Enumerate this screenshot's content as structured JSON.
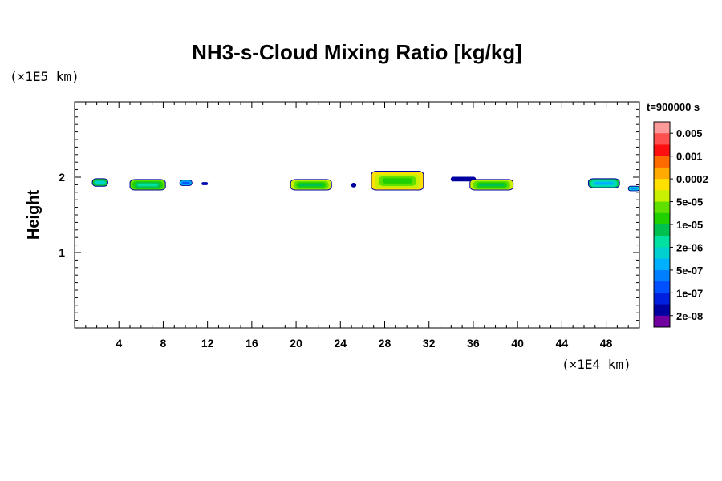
{
  "chart_data": {
    "type": "heatmap",
    "title": "NH3-s-Cloud Mixing Ratio [kg/kg]",
    "ylabel": "Height",
    "x_unit": "(×1E4 km)",
    "y_unit": "(×1E5 km)",
    "time_label": "t=900000 s",
    "xlim": [
      0,
      51
    ],
    "ylim": [
      0,
      3
    ],
    "x_ticks": [
      4,
      8,
      12,
      16,
      20,
      24,
      28,
      32,
      36,
      40,
      44,
      48
    ],
    "x_tick_labels": [
      "4",
      "8",
      "12",
      "16",
      "20",
      "24",
      "28",
      "32",
      "36",
      "40",
      "44",
      "48"
    ],
    "y_ticks": [
      1,
      2
    ],
    "y_tick_labels": [
      "1",
      "2"
    ],
    "legend": {
      "labels": [
        "0.005",
        "0.001",
        "0.0002",
        "5e-05",
        "1e-05",
        "2e-06",
        "5e-07",
        "1e-07",
        "2e-08"
      ],
      "colors": [
        "#ff9a9a",
        "#ff5050",
        "#ff1010",
        "#ff6a00",
        "#ffaa00",
        "#ffe000",
        "#c8f000",
        "#60e000",
        "#20d000",
        "#00c050",
        "#00e0a0",
        "#00d0d0",
        "#00b0ff",
        "#0080ff",
        "#0050ff",
        "#0020e0",
        "#0000a0",
        "#7000a0"
      ]
    },
    "cloud_cells": [
      {
        "x0": 1.6,
        "x1": 3.0,
        "y": 1.88,
        "h": 0.1,
        "level": 9
      },
      {
        "x0": 5.0,
        "x1": 8.2,
        "y": 1.83,
        "h": 0.14,
        "level": 10
      },
      {
        "x0": 9.5,
        "x1": 10.6,
        "y": 1.89,
        "h": 0.07,
        "level": 6
      },
      {
        "x0": 11.5,
        "x1": 12.0,
        "y": 1.9,
        "h": 0.03,
        "level": 3
      },
      {
        "x0": 19.5,
        "x1": 23.2,
        "y": 1.83,
        "h": 0.14,
        "level": 11
      },
      {
        "x0": 25.0,
        "x1": 25.4,
        "y": 1.87,
        "h": 0.05,
        "level": 2
      },
      {
        "x0": 26.8,
        "x1": 31.5,
        "y": 1.83,
        "h": 0.25,
        "level": 12
      },
      {
        "x0": 34.0,
        "x1": 36.2,
        "y": 1.95,
        "h": 0.05,
        "level": 1
      },
      {
        "x0": 35.7,
        "x1": 39.6,
        "y": 1.83,
        "h": 0.14,
        "level": 11
      },
      {
        "x0": 46.4,
        "x1": 49.2,
        "y": 1.86,
        "h": 0.12,
        "level": 8
      },
      {
        "x0": 50.0,
        "x1": 51.0,
        "y": 1.82,
        "h": 0.06,
        "level": 7
      }
    ]
  }
}
